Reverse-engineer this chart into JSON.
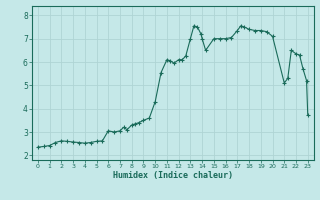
{
  "title": "",
  "xlabel": "Humidex (Indice chaleur)",
  "ylabel": "",
  "background_color": "#c5e8e8",
  "grid_color": "#afd4d4",
  "line_color": "#1a6b5a",
  "marker_color": "#1a6b5a",
  "xlim": [
    -0.5,
    23.5
  ],
  "ylim": [
    1.8,
    8.4
  ],
  "yticks": [
    2,
    3,
    4,
    5,
    6,
    7,
    8
  ],
  "xticks": [
    0,
    1,
    2,
    3,
    4,
    5,
    6,
    7,
    8,
    9,
    10,
    11,
    12,
    13,
    14,
    15,
    16,
    17,
    18,
    19,
    20,
    21,
    22,
    23
  ],
  "x": [
    0,
    0.5,
    1,
    1.5,
    2,
    2.5,
    3,
    3.5,
    4,
    4.5,
    5,
    5.5,
    6,
    6.5,
    7,
    7.3,
    7.6,
    8,
    8.3,
    8.6,
    9,
    9.5,
    10,
    10.5,
    11,
    11.3,
    11.6,
    12,
    12.3,
    12.6,
    13,
    13.3,
    13.6,
    13.9,
    14,
    14.3,
    15,
    15.5,
    16,
    16.5,
    17,
    17.3,
    17.6,
    18,
    18.5,
    19,
    19.5,
    20,
    21,
    21.3,
    21.6,
    22,
    22.3,
    22.6,
    22.9,
    23
  ],
  "y": [
    2.35,
    2.38,
    2.42,
    2.55,
    2.62,
    2.6,
    2.57,
    2.55,
    2.52,
    2.55,
    2.6,
    2.62,
    3.05,
    3.0,
    3.05,
    3.2,
    3.1,
    3.3,
    3.35,
    3.4,
    3.5,
    3.6,
    4.3,
    5.55,
    6.1,
    6.05,
    5.95,
    6.1,
    6.1,
    6.25,
    7.0,
    7.55,
    7.5,
    7.2,
    7.0,
    6.5,
    7.0,
    7.0,
    7.0,
    7.05,
    7.35,
    7.55,
    7.5,
    7.4,
    7.35,
    7.35,
    7.3,
    7.1,
    5.1,
    5.3,
    6.5,
    6.35,
    6.3,
    5.7,
    5.2,
    3.75
  ]
}
